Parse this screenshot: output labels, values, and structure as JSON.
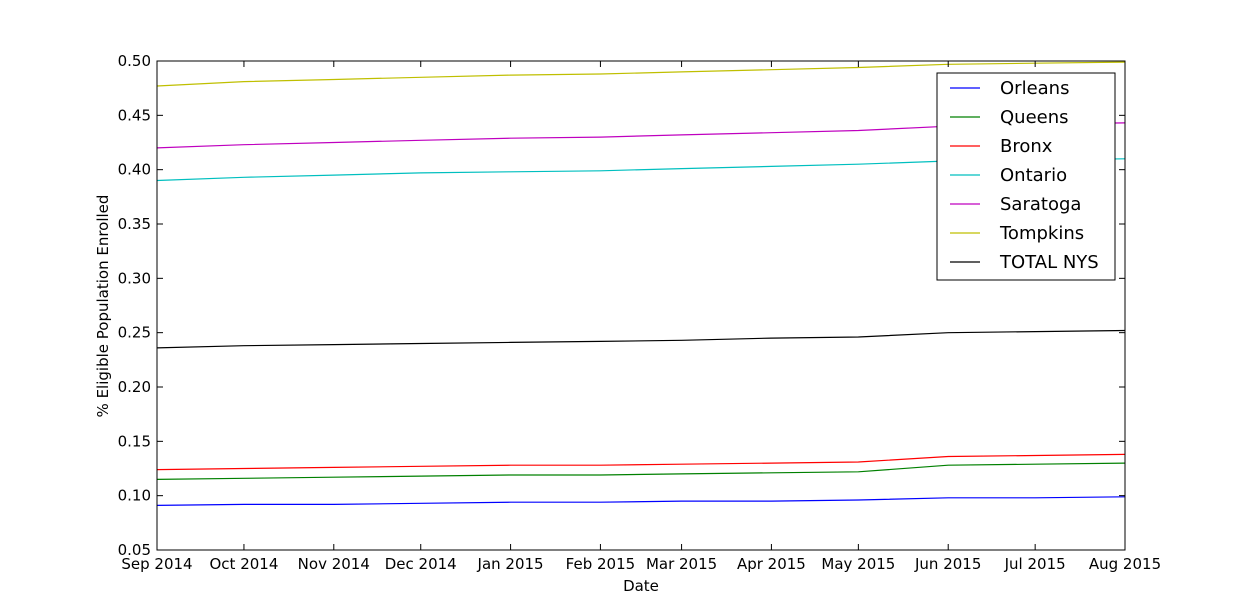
{
  "chart_data": {
    "type": "line",
    "title": "",
    "xlabel": "Date",
    "ylabel": "% Eligible Population Enrolled",
    "x": [
      "Sep 2014",
      "Oct 2014",
      "Nov 2014",
      "Dec 2014",
      "Jan 2015",
      "Feb 2015",
      "Mar 2015",
      "Apr 2015",
      "May 2015",
      "Jun 2015",
      "Jul 2015",
      "Aug 2015"
    ],
    "xlim": [
      "Sep 2014",
      "Aug 2015"
    ],
    "ylim": [
      0.05,
      0.5
    ],
    "yticks": [
      0.05,
      0.1,
      0.15,
      0.2,
      0.25,
      0.3,
      0.35,
      0.4,
      0.45,
      0.5
    ],
    "ytick_labels": [
      "0.05",
      "0.10",
      "0.15",
      "0.20",
      "0.25",
      "0.30",
      "0.35",
      "0.40",
      "0.45",
      "0.50"
    ],
    "grid": false,
    "legend_position": "top-right",
    "series": [
      {
        "name": "Orleans",
        "color": "#0000ff",
        "values": [
          0.091,
          0.092,
          0.092,
          0.093,
          0.094,
          0.094,
          0.095,
          0.095,
          0.096,
          0.098,
          0.098,
          0.099
        ]
      },
      {
        "name": "Queens",
        "color": "#008000",
        "values": [
          0.115,
          0.116,
          0.117,
          0.118,
          0.119,
          0.119,
          0.12,
          0.121,
          0.122,
          0.128,
          0.129,
          0.13
        ]
      },
      {
        "name": "Bronx",
        "color": "#ff0000",
        "values": [
          0.124,
          0.125,
          0.126,
          0.127,
          0.128,
          0.128,
          0.129,
          0.13,
          0.131,
          0.136,
          0.137,
          0.138
        ]
      },
      {
        "name": "Ontario",
        "color": "#00bfbf",
        "values": [
          0.39,
          0.393,
          0.395,
          0.397,
          0.398,
          0.399,
          0.401,
          0.403,
          0.405,
          0.408,
          0.409,
          0.41
        ]
      },
      {
        "name": "Saratoga",
        "color": "#bf00bf",
        "values": [
          0.42,
          0.423,
          0.425,
          0.427,
          0.429,
          0.43,
          0.432,
          0.434,
          0.436,
          0.44,
          0.442,
          0.443
        ]
      },
      {
        "name": "Tompkins",
        "color": "#bfbf00",
        "values": [
          0.477,
          0.481,
          0.483,
          0.485,
          0.487,
          0.488,
          0.49,
          0.492,
          0.494,
          0.497,
          0.498,
          0.499
        ]
      },
      {
        "name": "TOTAL NYS",
        "color": "#000000",
        "values": [
          0.236,
          0.238,
          0.239,
          0.24,
          0.241,
          0.242,
          0.243,
          0.245,
          0.246,
          0.25,
          0.251,
          0.252
        ]
      }
    ]
  }
}
